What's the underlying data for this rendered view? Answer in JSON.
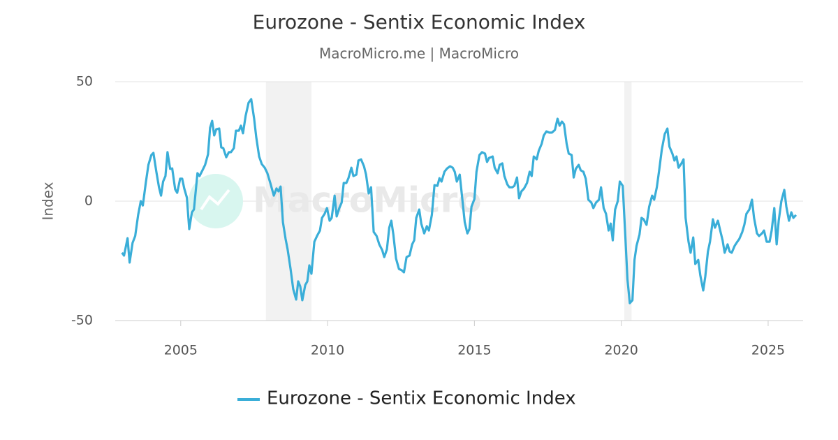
{
  "chart_data": {
    "type": "line",
    "title": "Eurozone - Sentix Economic Index",
    "subtitle": "MacroMicro.me | MacroMicro",
    "y_label": "Index",
    "watermark": "MacroMicro",
    "xlim": [
      2002.77,
      2026.19
    ],
    "xticks": [
      2005,
      2010,
      2015,
      2020,
      2025
    ],
    "ylim": [
      -50,
      50
    ],
    "yticks": [
      -50,
      0,
      50
    ],
    "grid": true,
    "legend": "bottom",
    "shaded_periods": [
      [
        2007.9,
        2009.45
      ],
      [
        2020.1,
        2020.35
      ]
    ],
    "x": [
      2003.0,
      2003.07,
      2003.19,
      2003.26,
      2003.36,
      2003.45,
      2003.55,
      2003.64,
      2003.71,
      2003.81,
      2003.9,
      2004.0,
      2004.07,
      2004.17,
      2004.26,
      2004.33,
      2004.4,
      2004.48,
      2004.55,
      2004.64,
      2004.71,
      2004.81,
      2004.88,
      2004.98,
      2005.05,
      2005.12,
      2005.21,
      2005.29,
      2005.38,
      2005.45,
      2005.57,
      2005.64,
      2005.74,
      2005.83,
      2005.93,
      2006.0,
      2006.07,
      2006.14,
      2006.21,
      2006.31,
      2006.38,
      2006.45,
      2006.55,
      2006.64,
      2006.71,
      2006.81,
      2006.88,
      2006.98,
      2007.05,
      2007.12,
      2007.21,
      2007.31,
      2007.4,
      2007.5,
      2007.57,
      2007.67,
      2007.76,
      2007.86,
      2007.95,
      2008.05,
      2008.17,
      2008.26,
      2008.33,
      2008.4,
      2008.48,
      2008.57,
      2008.64,
      2008.74,
      2008.83,
      2008.93,
      2009.0,
      2009.07,
      2009.14,
      2009.24,
      2009.31,
      2009.38,
      2009.45,
      2009.55,
      2009.64,
      2009.74,
      2009.81,
      2009.9,
      2009.98,
      2010.07,
      2010.14,
      2010.24,
      2010.31,
      2010.4,
      2010.48,
      2010.55,
      2010.64,
      2010.71,
      2010.81,
      2010.88,
      2010.98,
      2011.05,
      2011.14,
      2011.24,
      2011.31,
      2011.4,
      2011.48,
      2011.57,
      2011.67,
      2011.76,
      2011.86,
      2011.93,
      2012.02,
      2012.1,
      2012.17,
      2012.24,
      2012.33,
      2012.43,
      2012.52,
      2012.6,
      2012.69,
      2012.79,
      2012.88,
      2012.95,
      2013.02,
      2013.12,
      2013.19,
      2013.29,
      2013.38,
      2013.45,
      2013.55,
      2013.64,
      2013.74,
      2013.81,
      2013.88,
      2013.98,
      2014.07,
      2014.17,
      2014.26,
      2014.33,
      2014.4,
      2014.5,
      2014.57,
      2014.67,
      2014.76,
      2014.83,
      2014.9,
      2015.0,
      2015.07,
      2015.17,
      2015.26,
      2015.36,
      2015.43,
      2015.5,
      2015.62,
      2015.69,
      2015.79,
      2015.86,
      2015.95,
      2016.02,
      2016.12,
      2016.19,
      2016.29,
      2016.36,
      2016.45,
      2016.52,
      2016.6,
      2016.69,
      2016.79,
      2016.88,
      2016.95,
      2017.02,
      2017.12,
      2017.19,
      2017.29,
      2017.36,
      2017.45,
      2017.55,
      2017.64,
      2017.74,
      2017.83,
      2017.9,
      2017.98,
      2018.05,
      2018.14,
      2018.21,
      2018.31,
      2018.38,
      2018.45,
      2018.55,
      2018.62,
      2018.71,
      2018.79,
      2018.88,
      2018.98,
      2019.05,
      2019.14,
      2019.24,
      2019.31,
      2019.4,
      2019.48,
      2019.57,
      2019.64,
      2019.71,
      2019.79,
      2019.88,
      2019.95,
      2020.05,
      2020.14,
      2020.21,
      2020.29,
      2020.38,
      2020.45,
      2020.52,
      2020.62,
      2020.69,
      2020.76,
      2020.86,
      2020.95,
      2021.05,
      2021.12,
      2021.21,
      2021.29,
      2021.38,
      2021.48,
      2021.57,
      2021.64,
      2021.74,
      2021.81,
      2021.88,
      2021.95,
      2022.05,
      2022.12,
      2022.19,
      2022.29,
      2022.36,
      2022.45,
      2022.52,
      2022.62,
      2022.69,
      2022.79,
      2022.86,
      2022.95,
      2023.02,
      2023.12,
      2023.19,
      2023.29,
      2023.38,
      2023.45,
      2023.52,
      2023.62,
      2023.69,
      2023.76,
      2023.86,
      2023.95,
      2024.02,
      2024.12,
      2024.19,
      2024.26,
      2024.36,
      2024.45,
      2024.52,
      2024.62,
      2024.69,
      2024.79,
      2024.86,
      2024.95,
      2025.05,
      2025.12,
      2025.21,
      2025.29,
      2025.36,
      2025.45,
      2025.55,
      2025.62,
      2025.71,
      2025.79,
      2025.86,
      2025.95
    ],
    "series": [
      {
        "name": "Eurozone - Sentix Economic Index",
        "color": "#3aaed8",
        "values": [
          -21.6,
          -22.8,
          -15.5,
          -25.7,
          -17.5,
          -14.6,
          -5.8,
          0,
          -1.8,
          7.6,
          15.2,
          19.3,
          20.2,
          12.3,
          5.8,
          2.3,
          8.2,
          10.5,
          20.5,
          13.5,
          13.7,
          5.0,
          3.5,
          9.4,
          9.4,
          5.3,
          1.5,
          -11.7,
          -4.7,
          -3.5,
          11.7,
          10.5,
          12.9,
          15.2,
          19.6,
          30.7,
          33.6,
          27.5,
          30.1,
          30.4,
          22.5,
          22.2,
          18.4,
          20.5,
          20.5,
          22.2,
          29.5,
          29.5,
          31.6,
          28.4,
          35.7,
          41.2,
          42.7,
          34.5,
          26.9,
          18.7,
          15.5,
          14.0,
          11.7,
          7.6,
          2.3,
          5.3,
          4.1,
          6.1,
          -8.8,
          -15.8,
          -20.2,
          -28.4,
          -36.8,
          -41.2,
          -33.6,
          -35.7,
          -41.5,
          -35.1,
          -33.6,
          -26.9,
          -30.4,
          -17.0,
          -14.6,
          -12.3,
          -7.0,
          -5.3,
          -2.9,
          -8.2,
          -7.0,
          2.3,
          -6.4,
          -2.9,
          -0.6,
          7.6,
          7.6,
          9.6,
          14.0,
          10.5,
          11.1,
          17.0,
          17.5,
          14.6,
          11.1,
          3.2,
          5.8,
          -12.9,
          -14.6,
          -18.1,
          -20.5,
          -23.4,
          -20.2,
          -11.1,
          -8.2,
          -14.0,
          -24.0,
          -28.4,
          -28.9,
          -29.8,
          -23.4,
          -22.8,
          -18.1,
          -16.4,
          -7.0,
          -3.5,
          -9.4,
          -13.5,
          -10.5,
          -12.3,
          -5.8,
          6.7,
          6.4,
          9.6,
          8.2,
          12.3,
          13.7,
          14.6,
          14.0,
          12.3,
          8.2,
          11.1,
          2.9,
          -8.8,
          -13.5,
          -11.7,
          -2.3,
          0.9,
          12.3,
          19.3,
          20.5,
          19.9,
          16.4,
          18.1,
          18.7,
          14.0,
          11.7,
          15.2,
          15.8,
          10.5,
          7.0,
          5.8,
          5.8,
          6.4,
          9.9,
          1.2,
          4.1,
          5.3,
          7.6,
          12.3,
          10.5,
          18.7,
          17.5,
          21.1,
          24.0,
          27.5,
          29.2,
          28.7,
          28.7,
          29.8,
          34.5,
          31.6,
          33.3,
          32.2,
          24.0,
          19.9,
          19.3,
          9.9,
          13.5,
          15.2,
          12.9,
          12.3,
          9.4,
          0.6,
          -0.6,
          -2.9,
          -0.6,
          0.6,
          5.8,
          -2.9,
          -5.3,
          -12.3,
          -9.4,
          -16.4,
          -3.5,
          0,
          8.2,
          6.4,
          -15.2,
          -32.7,
          -42.7,
          -41.5,
          -24.6,
          -18.7,
          -14.0,
          -7.0,
          -7.6,
          -9.9,
          -2.3,
          2.3,
          0.6,
          5.8,
          12.9,
          21.6,
          28.1,
          30.4,
          22.8,
          19.9,
          17.0,
          18.7,
          14.0,
          15.8,
          17.5,
          -7.0,
          -17.0,
          -21.6,
          -15.2,
          -26.3,
          -24.6,
          -31.0,
          -37.4,
          -31.6,
          -21.1,
          -17.0,
          -7.6,
          -11.1,
          -8.2,
          -12.9,
          -16.4,
          -21.6,
          -18.1,
          -21.1,
          -21.6,
          -18.7,
          -17.0,
          -15.8,
          -12.9,
          -9.9,
          -5.3,
          -3.5,
          0.6,
          -7.0,
          -13.5,
          -14.6,
          -13.5,
          -12.3,
          -17.0,
          -17.0,
          -12.3,
          -2.9,
          -18.1,
          -8.2,
          0,
          4.7,
          -2.3,
          -8.2,
          -4.7,
          -7.0,
          -5.8
        ]
      }
    ]
  }
}
